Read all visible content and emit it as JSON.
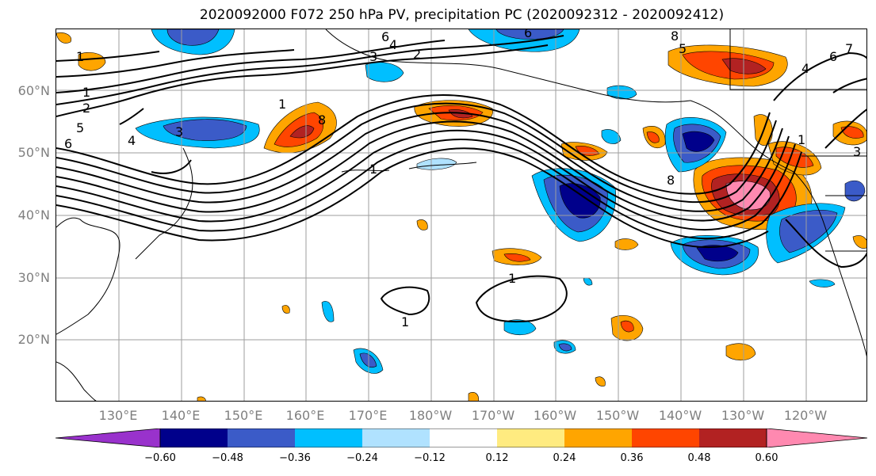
{
  "title": "2020092000 F072 250 hPa PV, precipitation PC (2020092312 - 2020092412)",
  "map": {
    "lat_labels": [
      "60°N",
      "50°N",
      "40°N",
      "30°N",
      "20°N"
    ],
    "lon_labels": [
      "130°E",
      "140°E",
      "150°E",
      "160°E",
      "170°E",
      "180°W",
      "170°W",
      "160°W",
      "150°W",
      "140°W",
      "130°W",
      "120°W"
    ],
    "contour_labels": [
      "1",
      "6",
      "4",
      "3",
      "2",
      "1",
      "2",
      "5",
      "6",
      "4",
      "3",
      "8",
      "1",
      "8",
      "8",
      "1",
      "5",
      "6",
      "7",
      "6",
      "4",
      "3",
      "1",
      "1",
      "1"
    ],
    "contour_color": "#000000",
    "coastline_color": "#000000",
    "grid_color": "#9e9e9e"
  },
  "colorbar": {
    "ticks": [
      "−0.60",
      "−0.48",
      "−0.36",
      "−0.24",
      "−0.12",
      "0.12",
      "0.24",
      "0.36",
      "0.48",
      "0.60"
    ],
    "colors": [
      "#9932CC",
      "#00008B",
      "#3B5BC8",
      "#00BFFF",
      "#B0E2FF",
      "#FFFFFF",
      "#FFEB80",
      "#FFA500",
      "#FF4500",
      "#B22222",
      "#FF89B0"
    ],
    "extend": "both"
  }
}
